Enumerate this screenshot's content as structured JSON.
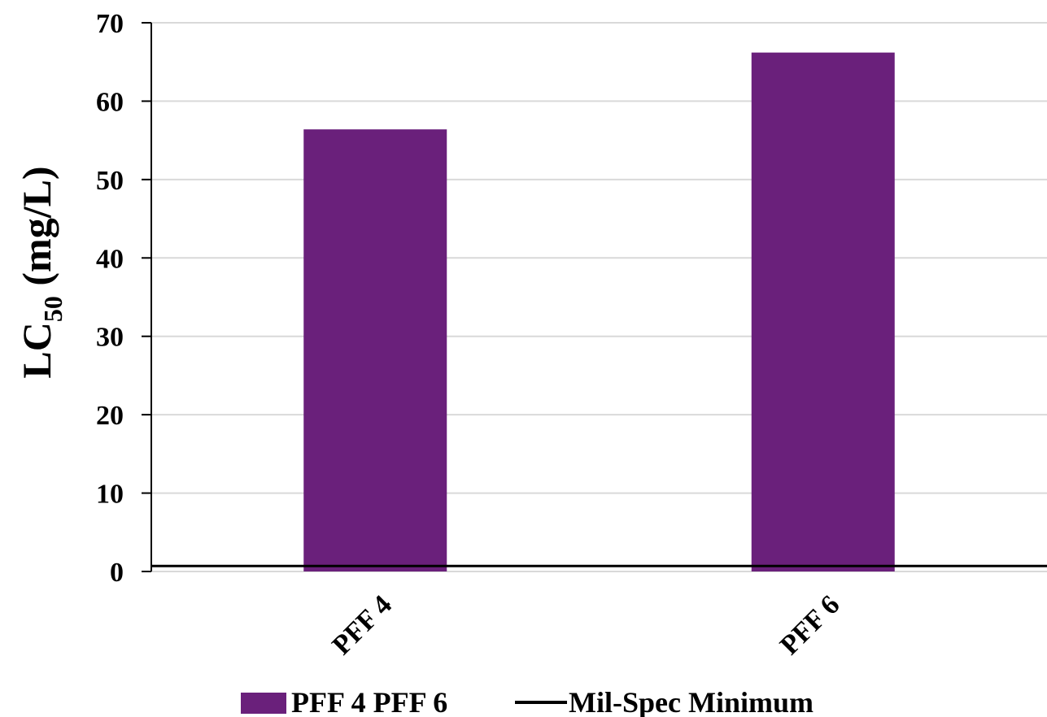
{
  "chart_data": {
    "type": "bar",
    "categories": [
      "PFF 4",
      "PFF 6"
    ],
    "series": [
      {
        "name": "PFF 4 PFF 6",
        "values": [
          56.4,
          66.2
        ],
        "color": "#6a207b"
      },
      {
        "name": "Mil-Spec Minimum",
        "type": "line",
        "values": [
          0.7,
          0.7
        ],
        "color": "#000000"
      }
    ],
    "ylabel_main": "LC",
    "ylabel_sub": "50",
    "ylabel_unit": " (mg/L)",
    "ylim": [
      0,
      70
    ],
    "yticks": [
      "0",
      "10",
      "20",
      "30",
      "40",
      "50",
      "60",
      "70"
    ],
    "grid": true,
    "legend_position": "bottom"
  }
}
